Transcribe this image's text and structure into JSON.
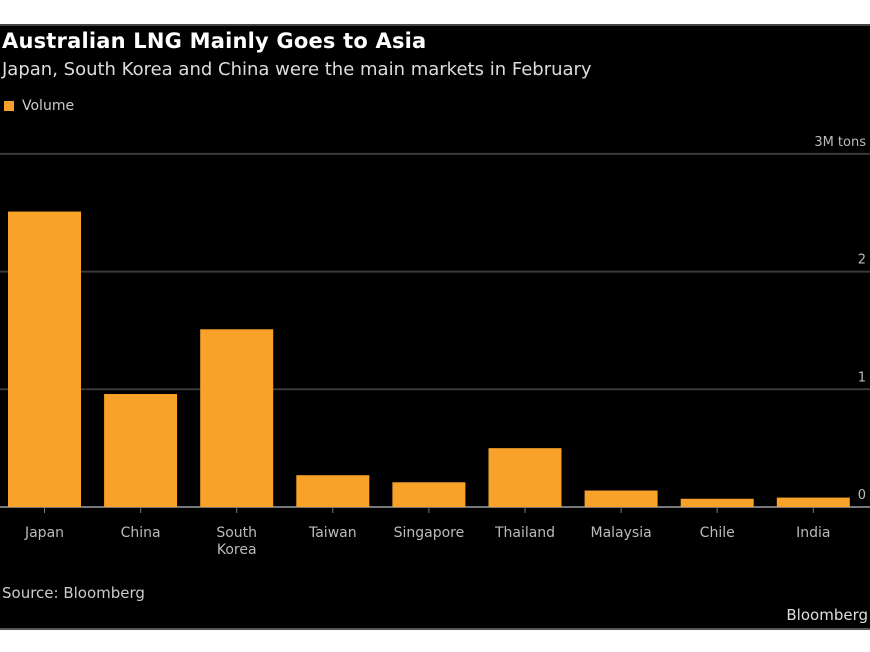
{
  "header": {
    "title": "Australian LNG Mainly Goes to Asia",
    "subtitle": "Japan, South Korea and China were the main markets in February"
  },
  "footer": {
    "source": "Source: Bloomberg",
    "brand": "Bloomberg"
  },
  "chart_data": {
    "type": "bar",
    "title": "Australian LNG Mainly Goes to Asia",
    "subtitle": "Japan, South Korea and China were the main markets in February",
    "categories": [
      "Japan",
      "China",
      "South Korea",
      "Taiwan",
      "Singapore",
      "Thailand",
      "Malaysia",
      "Chile",
      "India"
    ],
    "series": [
      {
        "name": "Volume",
        "values": [
          2.51,
          0.96,
          1.51,
          0.27,
          0.21,
          0.5,
          0.14,
          0.07,
          0.08
        ],
        "color": "#f9a229"
      }
    ],
    "ylim": [
      0,
      3
    ],
    "yticks": [
      {
        "value": 0,
        "label": "0"
      },
      {
        "value": 1,
        "label": "1"
      },
      {
        "value": 2,
        "label": "2"
      },
      {
        "value": 3,
        "label": "3M tons"
      }
    ],
    "yaxis_position": "right",
    "grid": true,
    "legend": "top-left",
    "background": "#000000"
  }
}
